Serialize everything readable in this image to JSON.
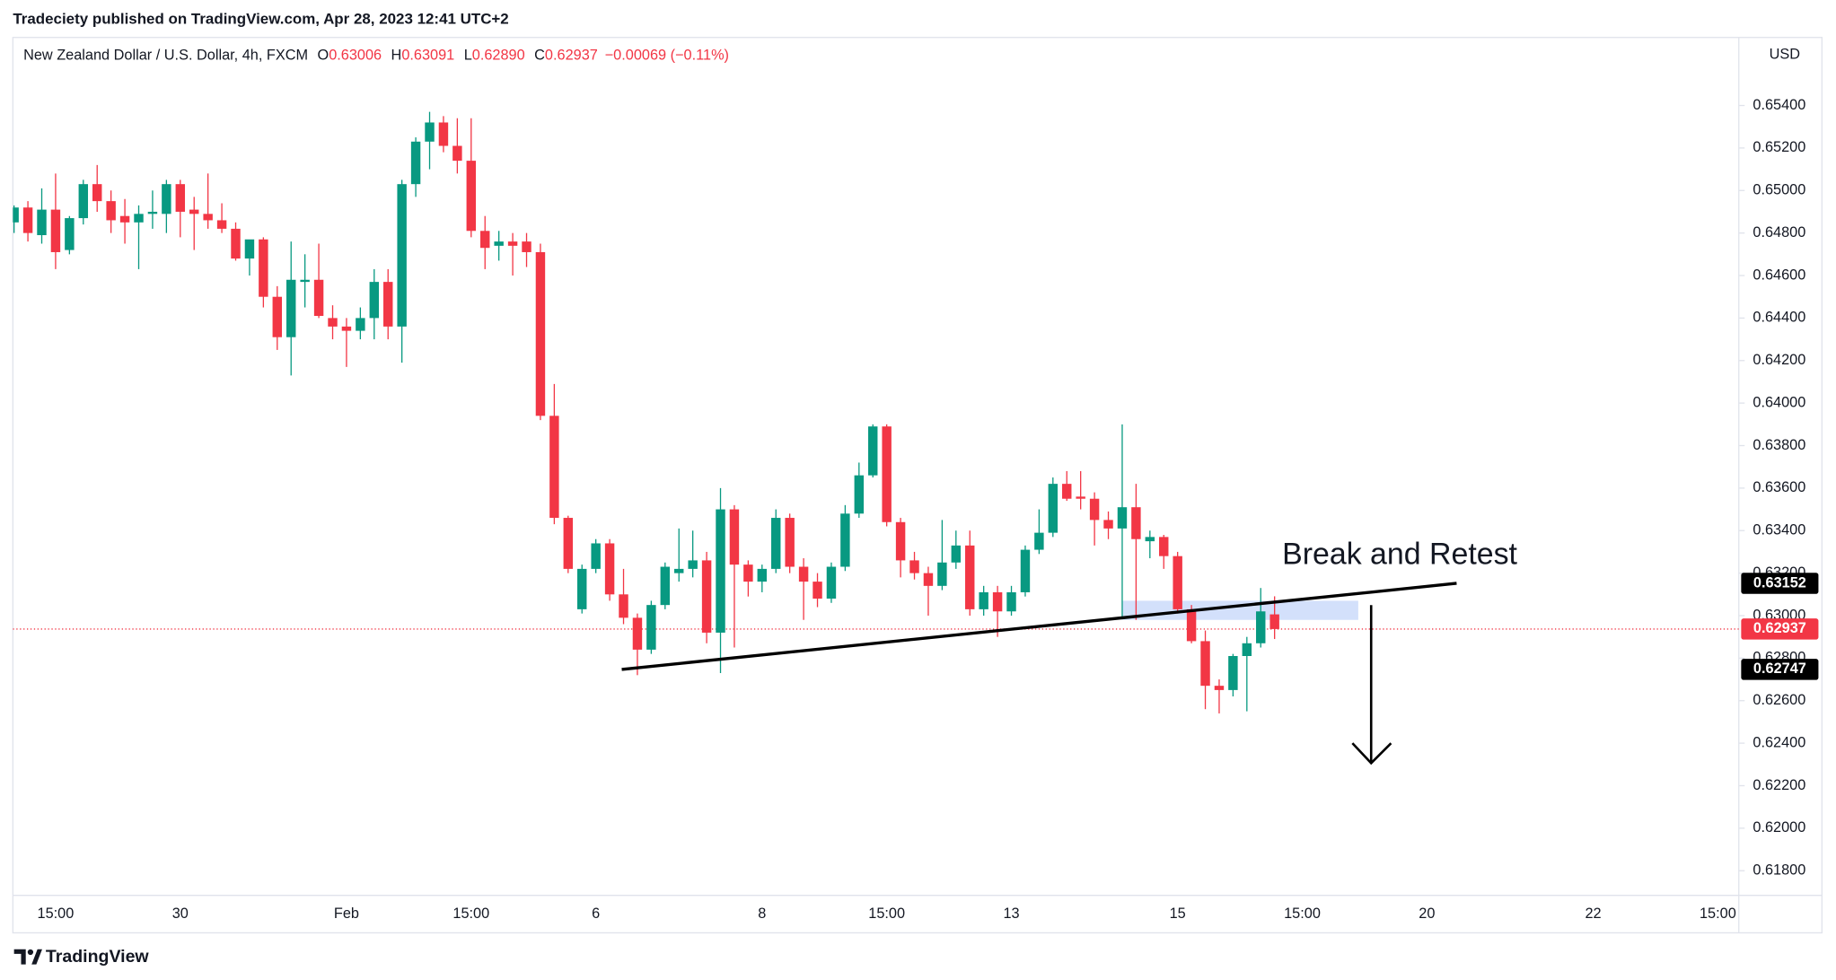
{
  "publisher": "Tradeciety published on TradingView.com, Apr 28, 2023 12:41 UTC+2",
  "legend": {
    "symbol": "New Zealand Dollar / U.S. Dollar, 4h, FXCM",
    "items": [
      {
        "key": "O",
        "value": "0.63006"
      },
      {
        "key": "H",
        "value": "0.63091"
      },
      {
        "key": "L",
        "value": "0.62890"
      },
      {
        "key": "C",
        "value": "0.62937"
      }
    ],
    "change": "−0.00069 (−0.11%)"
  },
  "footer": "TradingView",
  "chart_data": {
    "type": "candlestick",
    "currency": "USD",
    "annotation": "Break and Retest",
    "up_color": "#089981",
    "down_color": "#f23645",
    "grid": false,
    "ylim": [
      0.61684,
      0.6572
    ],
    "yticks": [
      {
        "value": 0.618,
        "label": "0.61800"
      },
      {
        "value": 0.62,
        "label": "0.62000"
      },
      {
        "value": 0.622,
        "label": "0.62200"
      },
      {
        "value": 0.624,
        "label": "0.62400"
      },
      {
        "value": 0.626,
        "label": "0.62600"
      },
      {
        "value": 0.628,
        "label": "0.62800"
      },
      {
        "value": 0.63,
        "label": "0.63000"
      },
      {
        "value": 0.632,
        "label": "0.63200"
      },
      {
        "value": 0.634,
        "label": "0.63400"
      },
      {
        "value": 0.636,
        "label": "0.63600"
      },
      {
        "value": 0.638,
        "label": "0.63800"
      },
      {
        "value": 0.64,
        "label": "0.64000"
      },
      {
        "value": 0.642,
        "label": "0.64200"
      },
      {
        "value": 0.644,
        "label": "0.64400"
      },
      {
        "value": 0.646,
        "label": "0.64600"
      },
      {
        "value": 0.648,
        "label": "0.64800"
      },
      {
        "value": 0.65,
        "label": "0.65000"
      },
      {
        "value": 0.652,
        "label": "0.65200"
      },
      {
        "value": 0.654,
        "label": "0.65400"
      }
    ],
    "price_labels": [
      {
        "value": 0.63152,
        "color": "#000000"
      },
      {
        "value": 0.62937,
        "color": "#f23645"
      },
      {
        "value": 0.62747,
        "color": "#000000"
      }
    ],
    "zone": [
      0.6298,
      0.6307
    ],
    "zone_color": "#d3e0fb",
    "categories": [
      null,
      null,
      null,
      "15:00",
      null,
      null,
      null,
      null,
      null,
      null,
      null,
      null,
      "30",
      null,
      null,
      null,
      null,
      null,
      null,
      null,
      null,
      null,
      null,
      null,
      "Feb",
      null,
      null,
      null,
      null,
      null,
      null,
      null,
      null,
      "15:00",
      null,
      null,
      null,
      null,
      null,
      null,
      null,
      null,
      "6",
      null,
      null,
      null,
      null,
      null,
      null,
      null,
      null,
      null,
      null,
      null,
      "8",
      null,
      null,
      null,
      null,
      null,
      null,
      null,
      null,
      "15:00",
      null,
      null,
      null,
      null,
      null,
      null,
      null,
      null,
      "13",
      null,
      null,
      null,
      null,
      null,
      null,
      null,
      null,
      null,
      null,
      null,
      "15",
      null,
      null,
      null,
      null,
      null,
      null,
      null,
      null,
      "15:00",
      null,
      null,
      null,
      null,
      null,
      null,
      null,
      null,
      "20",
      null,
      null,
      null,
      null,
      null,
      null,
      null,
      null,
      null,
      null,
      null,
      "22",
      null,
      null,
      null,
      null,
      null,
      null,
      null,
      null,
      "15:00",
      null
    ],
    "open": [
      0.6485,
      0.6492,
      0.6479,
      0.6491,
      0.6472,
      0.6487,
      0.6503,
      0.6495,
      0.6488,
      0.6485,
      0.6489,
      0.6489,
      0.6503,
      0.6491,
      0.6489,
      0.6486,
      0.6482,
      0.6468,
      0.6477,
      0.645,
      0.6431,
      0.6457,
      0.6458,
      0.644,
      0.6436,
      0.6434,
      0.644,
      0.6457,
      0.6436,
      0.6503,
      0.6523,
      0.6532,
      0.6521,
      0.6514,
      0.6481,
      0.6474,
      0.6476,
      0.6476,
      0.6471,
      0.6394,
      0.6346,
      0.6303,
      0.6322,
      0.6334,
      0.631,
      0.6299,
      0.6284,
      0.6305,
      0.632,
      0.6322,
      0.6326,
      0.6292,
      0.635,
      0.6324,
      0.6316,
      0.6322,
      0.6346,
      0.6323,
      0.6316,
      0.6308,
      0.6323,
      0.6348,
      0.6366,
      0.6389,
      0.6344,
      0.6326,
      0.632,
      0.6314,
      0.6325,
      0.6333,
      0.6303,
      0.6311,
      0.6302,
      0.6311,
      0.6331,
      0.6339,
      0.6362,
      0.6356,
      0.6355,
      0.6345,
      0.6341,
      0.6351,
      0.6335,
      0.6337,
      0.6328,
      0.6303,
      0.6288,
      0.6267,
      0.6265,
      0.6281,
      0.6287,
      0.63006,
      null,
      null,
      null,
      null,
      null,
      null,
      null,
      null,
      null,
      null,
      null,
      null,
      null,
      null,
      null,
      null,
      null,
      null,
      null,
      null,
      null,
      null,
      null,
      null,
      null,
      null,
      null,
      null,
      null,
      null,
      null,
      null,
      null
    ],
    "high": [
      0.6493,
      0.6495,
      0.6501,
      0.6508,
      0.6488,
      0.6505,
      0.6512,
      0.65,
      0.6496,
      0.6493,
      0.65,
      0.6505,
      0.6505,
      0.6497,
      0.6508,
      0.6494,
      0.6485,
      0.6475,
      0.6478,
      0.6455,
      0.6476,
      0.647,
      0.6475,
      0.6446,
      0.644,
      0.6445,
      0.6463,
      0.6463,
      0.6505,
      0.6525,
      0.6537,
      0.6535,
      0.6534,
      0.6534,
      0.6488,
      0.6481,
      0.648,
      0.648,
      0.6475,
      0.6409,
      0.6347,
      0.6324,
      0.6336,
      0.6336,
      0.6322,
      0.6301,
      0.6307,
      0.6325,
      0.6341,
      0.634,
      0.633,
      0.636,
      0.6352,
      0.6326,
      0.6324,
      0.635,
      0.6348,
      0.6327,
      0.632,
      0.6325,
      0.6352,
      0.6372,
      0.639,
      0.639,
      0.6346,
      0.633,
      0.6323,
      0.6345,
      0.634,
      0.634,
      0.6314,
      0.6314,
      0.6314,
      0.6333,
      0.635,
      0.6365,
      0.6368,
      0.6368,
      0.6358,
      0.6349,
      0.639,
      0.6362,
      0.634,
      0.6338,
      0.633,
      0.6305,
      0.6293,
      0.627,
      0.6282,
      0.629,
      0.6313,
      0.63091,
      null,
      null,
      null,
      null,
      null,
      null,
      null,
      null,
      null,
      null,
      null,
      null,
      null,
      null,
      null,
      null,
      null,
      null,
      null,
      null,
      null,
      null,
      null,
      null,
      null,
      null,
      null,
      null,
      null,
      null,
      null,
      null,
      null
    ],
    "low": [
      0.648,
      0.6476,
      0.6475,
      0.6463,
      0.647,
      0.6484,
      0.649,
      0.648,
      0.6475,
      0.6463,
      0.6482,
      0.648,
      0.6478,
      0.6472,
      0.6482,
      0.648,
      0.6467,
      0.646,
      0.6445,
      0.6425,
      0.6413,
      0.6445,
      0.644,
      0.643,
      0.6417,
      0.643,
      0.643,
      0.643,
      0.6419,
      0.6497,
      0.651,
      0.6518,
      0.6508,
      0.6478,
      0.6463,
      0.6467,
      0.646,
      0.6464,
      0.6392,
      0.6343,
      0.632,
      0.6301,
      0.632,
      0.6307,
      0.6296,
      0.6272,
      0.6282,
      0.6303,
      0.6316,
      0.6318,
      0.6287,
      0.6273,
      0.6285,
      0.6309,
      0.6311,
      0.632,
      0.632,
      0.6298,
      0.6304,
      0.6306,
      0.6321,
      0.6346,
      0.6365,
      0.6342,
      0.6318,
      0.6317,
      0.63,
      0.6312,
      0.6322,
      0.63,
      0.63,
      0.629,
      0.63,
      0.6309,
      0.6329,
      0.6337,
      0.6354,
      0.635,
      0.6333,
      0.6336,
      0.6299,
      0.6298,
      0.6327,
      0.6322,
      0.6301,
      0.6287,
      0.6256,
      0.6254,
      0.6262,
      0.6255,
      0.6285,
      0.6289,
      null,
      null,
      null,
      null,
      null,
      null,
      null,
      null,
      null,
      null,
      null,
      null,
      null,
      null,
      null,
      null,
      null,
      null,
      null,
      null,
      null,
      null,
      null,
      null,
      null,
      null,
      null,
      null,
      null,
      null,
      null,
      null,
      null
    ],
    "close": [
      0.6492,
      0.648,
      0.6491,
      0.6471,
      0.6487,
      0.6503,
      0.6495,
      0.6486,
      0.6485,
      0.6489,
      0.649,
      0.6503,
      0.649,
      0.6489,
      0.6486,
      0.6482,
      0.6468,
      0.6477,
      0.645,
      0.6431,
      0.6458,
      0.6458,
      0.6441,
      0.6436,
      0.6434,
      0.644,
      0.6457,
      0.6436,
      0.6503,
      0.6523,
      0.6532,
      0.6521,
      0.6514,
      0.6481,
      0.6473,
      0.6476,
      0.6474,
      0.6471,
      0.6394,
      0.6346,
      0.6322,
      0.6322,
      0.6334,
      0.631,
      0.6299,
      0.6284,
      0.6305,
      0.6323,
      0.6322,
      0.6326,
      0.6292,
      0.635,
      0.6324,
      0.6316,
      0.6322,
      0.6346,
      0.6323,
      0.6316,
      0.6308,
      0.6323,
      0.6348,
      0.6366,
      0.6389,
      0.6344,
      0.6326,
      0.632,
      0.6314,
      0.6325,
      0.6333,
      0.6303,
      0.6311,
      0.6302,
      0.6311,
      0.6331,
      0.6339,
      0.6362,
      0.6355,
      0.6355,
      0.6345,
      0.6341,
      0.6351,
      0.6336,
      0.6337,
      0.6328,
      0.6303,
      0.6288,
      0.6267,
      0.6265,
      0.6281,
      0.6287,
      0.6302,
      0.62937,
      null,
      null,
      null,
      null,
      null,
      null,
      null,
      null,
      null,
      null,
      null,
      null,
      null,
      null,
      null,
      null,
      null,
      null,
      null,
      null,
      null,
      null,
      null,
      null,
      null,
      null,
      null,
      null,
      null,
      null,
      null,
      null,
      null
    ]
  }
}
